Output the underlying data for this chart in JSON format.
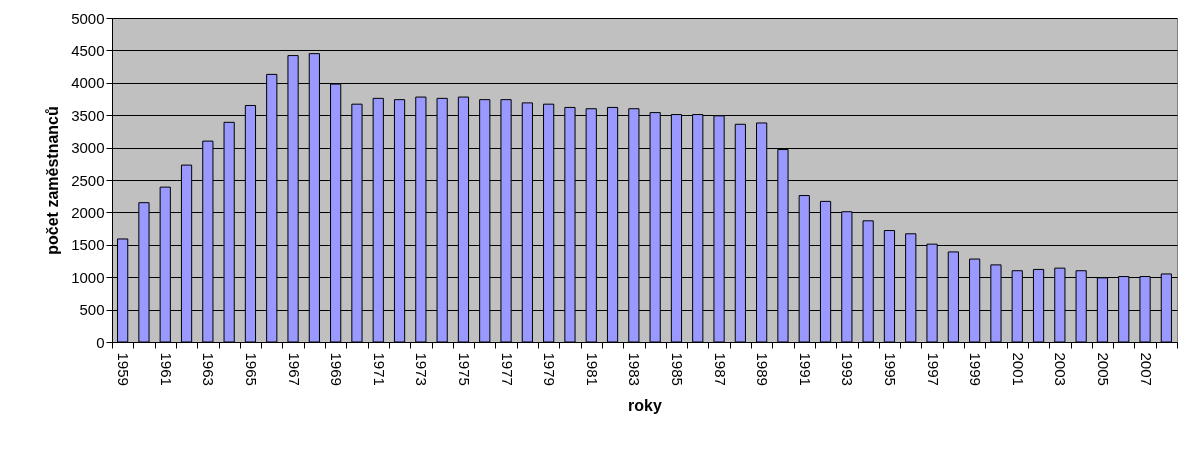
{
  "chart_data": {
    "type": "bar",
    "xlabel": "roky",
    "ylabel": "počet zaměstnanců",
    "categories": [
      "1959",
      null,
      "1961",
      null,
      "1963",
      null,
      "1965",
      null,
      "1967",
      null,
      "1969",
      null,
      "1971",
      null,
      "1973",
      null,
      "1975",
      null,
      "1977",
      null,
      "1979",
      null,
      "1981",
      null,
      "1983",
      null,
      "1985",
      null,
      "1987",
      null,
      "1989",
      null,
      "1991",
      null,
      "1993",
      null,
      "1995",
      null,
      "1997",
      null,
      "1999",
      null,
      "2001",
      null,
      "2003",
      null,
      "2005",
      null,
      "2007",
      null
    ],
    "values": [
      1590,
      2150,
      2390,
      2730,
      3100,
      3390,
      3650,
      4130,
      4420,
      4450,
      3980,
      3670,
      3760,
      3740,
      3780,
      3760,
      3780,
      3740,
      3740,
      3690,
      3670,
      3620,
      3600,
      3620,
      3600,
      3540,
      3510,
      3510,
      3490,
      3360,
      3380,
      2970,
      2260,
      2170,
      2010,
      1870,
      1720,
      1670,
      1510,
      1390,
      1280,
      1190,
      1100,
      1120,
      1140,
      1100,
      990,
      1010,
      1010,
      1050
    ],
    "color": "#9999ff",
    "ylim": [
      0,
      5000
    ],
    "yticks": [
      0,
      500,
      1000,
      1500,
      2000,
      2500,
      3000,
      3500,
      4000,
      4500,
      5000
    ],
    "grid": "y"
  }
}
